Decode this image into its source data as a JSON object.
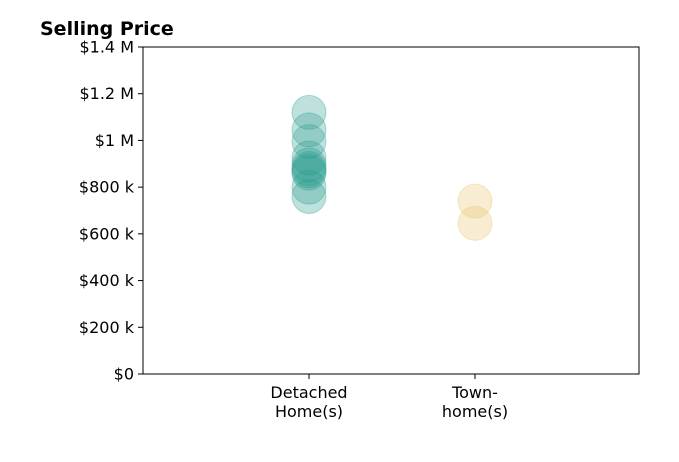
{
  "chart_data": {
    "type": "scatter",
    "title": "Selling Price",
    "xlabel": "",
    "ylabel": "",
    "ylim": [
      0,
      1400000
    ],
    "grid": false,
    "legend": "none",
    "y_ticks": [
      {
        "value": 0,
        "label": "$0"
      },
      {
        "value": 200000,
        "label": "$200 k"
      },
      {
        "value": 400000,
        "label": "$400 k"
      },
      {
        "value": 600000,
        "label": "$600 k"
      },
      {
        "value": 800000,
        "label": "$800 k"
      },
      {
        "value": 1000000,
        "label": "$1 M"
      },
      {
        "value": 1200000,
        "label": "$1.2 M"
      },
      {
        "value": 1400000,
        "label": "$1.4 M"
      }
    ],
    "categories": [
      {
        "lines": [
          "Detached",
          "Home(s)"
        ],
        "color": "#2a9d8f"
      },
      {
        "lines": [
          "Town-",
          "home(s)"
        ],
        "color": "#e9c46a"
      }
    ],
    "series": [
      {
        "category_index": 0,
        "values": [
          1120000,
          1045000,
          995000,
          925000,
          895000,
          880000,
          870000,
          860000,
          800000,
          760000
        ]
      },
      {
        "category_index": 1,
        "values": [
          740000,
          645000
        ]
      }
    ]
  }
}
